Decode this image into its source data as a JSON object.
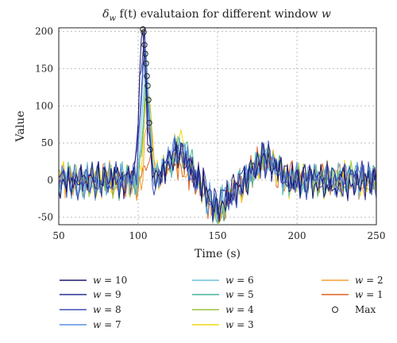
{
  "chart_data": {
    "type": "line",
    "title_parts": {
      "delta": "δ",
      "sub": "w",
      "rest": " f(t) evalutaion for different window ",
      "w": "w"
    },
    "xlabel": "Time (s)",
    "ylabel": "Value",
    "xlim": [
      50,
      250
    ],
    "ylim": [
      -60,
      205
    ],
    "xticks": [
      50,
      100,
      150,
      200,
      250
    ],
    "yticks": [
      -50,
      0,
      50,
      100,
      150,
      200
    ],
    "grid": true,
    "legend_location": "below",
    "series": [
      {
        "name": "w = 10",
        "w": "10",
        "color": "#1f1a6e",
        "peak_x": 103,
        "peak_y": 203,
        "b1": 0,
        "b2": 2
      },
      {
        "name": "w = 9",
        "w": "9",
        "color": "#2b2f96",
        "peak_x": 103.5,
        "peak_y": 199,
        "b1": 1,
        "b2": 2
      },
      {
        "name": "w = 8",
        "w": "8",
        "color": "#3f4fb7",
        "peak_x": 104,
        "peak_y": 182,
        "b1": 2,
        "b2": 1.5
      },
      {
        "name": "w = 7",
        "w": "7",
        "color": "#5a8de0",
        "peak_x": 104.5,
        "peak_y": 170,
        "b1": 3,
        "b2": 1.5
      },
      {
        "name": "w = 6",
        "w": "6",
        "color": "#6fbfd8",
        "peak_x": 105,
        "peak_y": 157,
        "b1": 4,
        "b2": 1
      },
      {
        "name": "w = 5",
        "w": "5",
        "color": "#46b39a",
        "peak_x": 105.5,
        "peak_y": 140,
        "b1": 5,
        "b2": 1
      },
      {
        "name": "w = 4",
        "w": "4",
        "color": "#9cc43e",
        "peak_x": 106,
        "peak_y": 127,
        "b1": 6,
        "b2": 0.5
      },
      {
        "name": "w = 3",
        "w": "3",
        "color": "#f2d80f",
        "peak_x": 106.5,
        "peak_y": 108,
        "b1": 7,
        "b2": 0.5
      },
      {
        "name": "w = 2",
        "w": "2",
        "color": "#f0a030",
        "peak_x": 107,
        "peak_y": 77,
        "b1": 8,
        "b2": 0
      },
      {
        "name": "w = 1",
        "w": "1",
        "color": "#e06020",
        "peak_x": 107.5,
        "peak_y": 41,
        "b1": 9,
        "b2": 0
      }
    ],
    "max_markers": {
      "name": "Max",
      "points": [
        [
          103,
          203
        ],
        [
          103.5,
          199
        ],
        [
          104,
          182
        ],
        [
          104.5,
          170
        ],
        [
          105,
          157
        ],
        [
          105.5,
          140
        ],
        [
          106,
          127
        ],
        [
          106.5,
          108
        ],
        [
          107,
          77
        ],
        [
          107.5,
          41
        ]
      ]
    }
  }
}
